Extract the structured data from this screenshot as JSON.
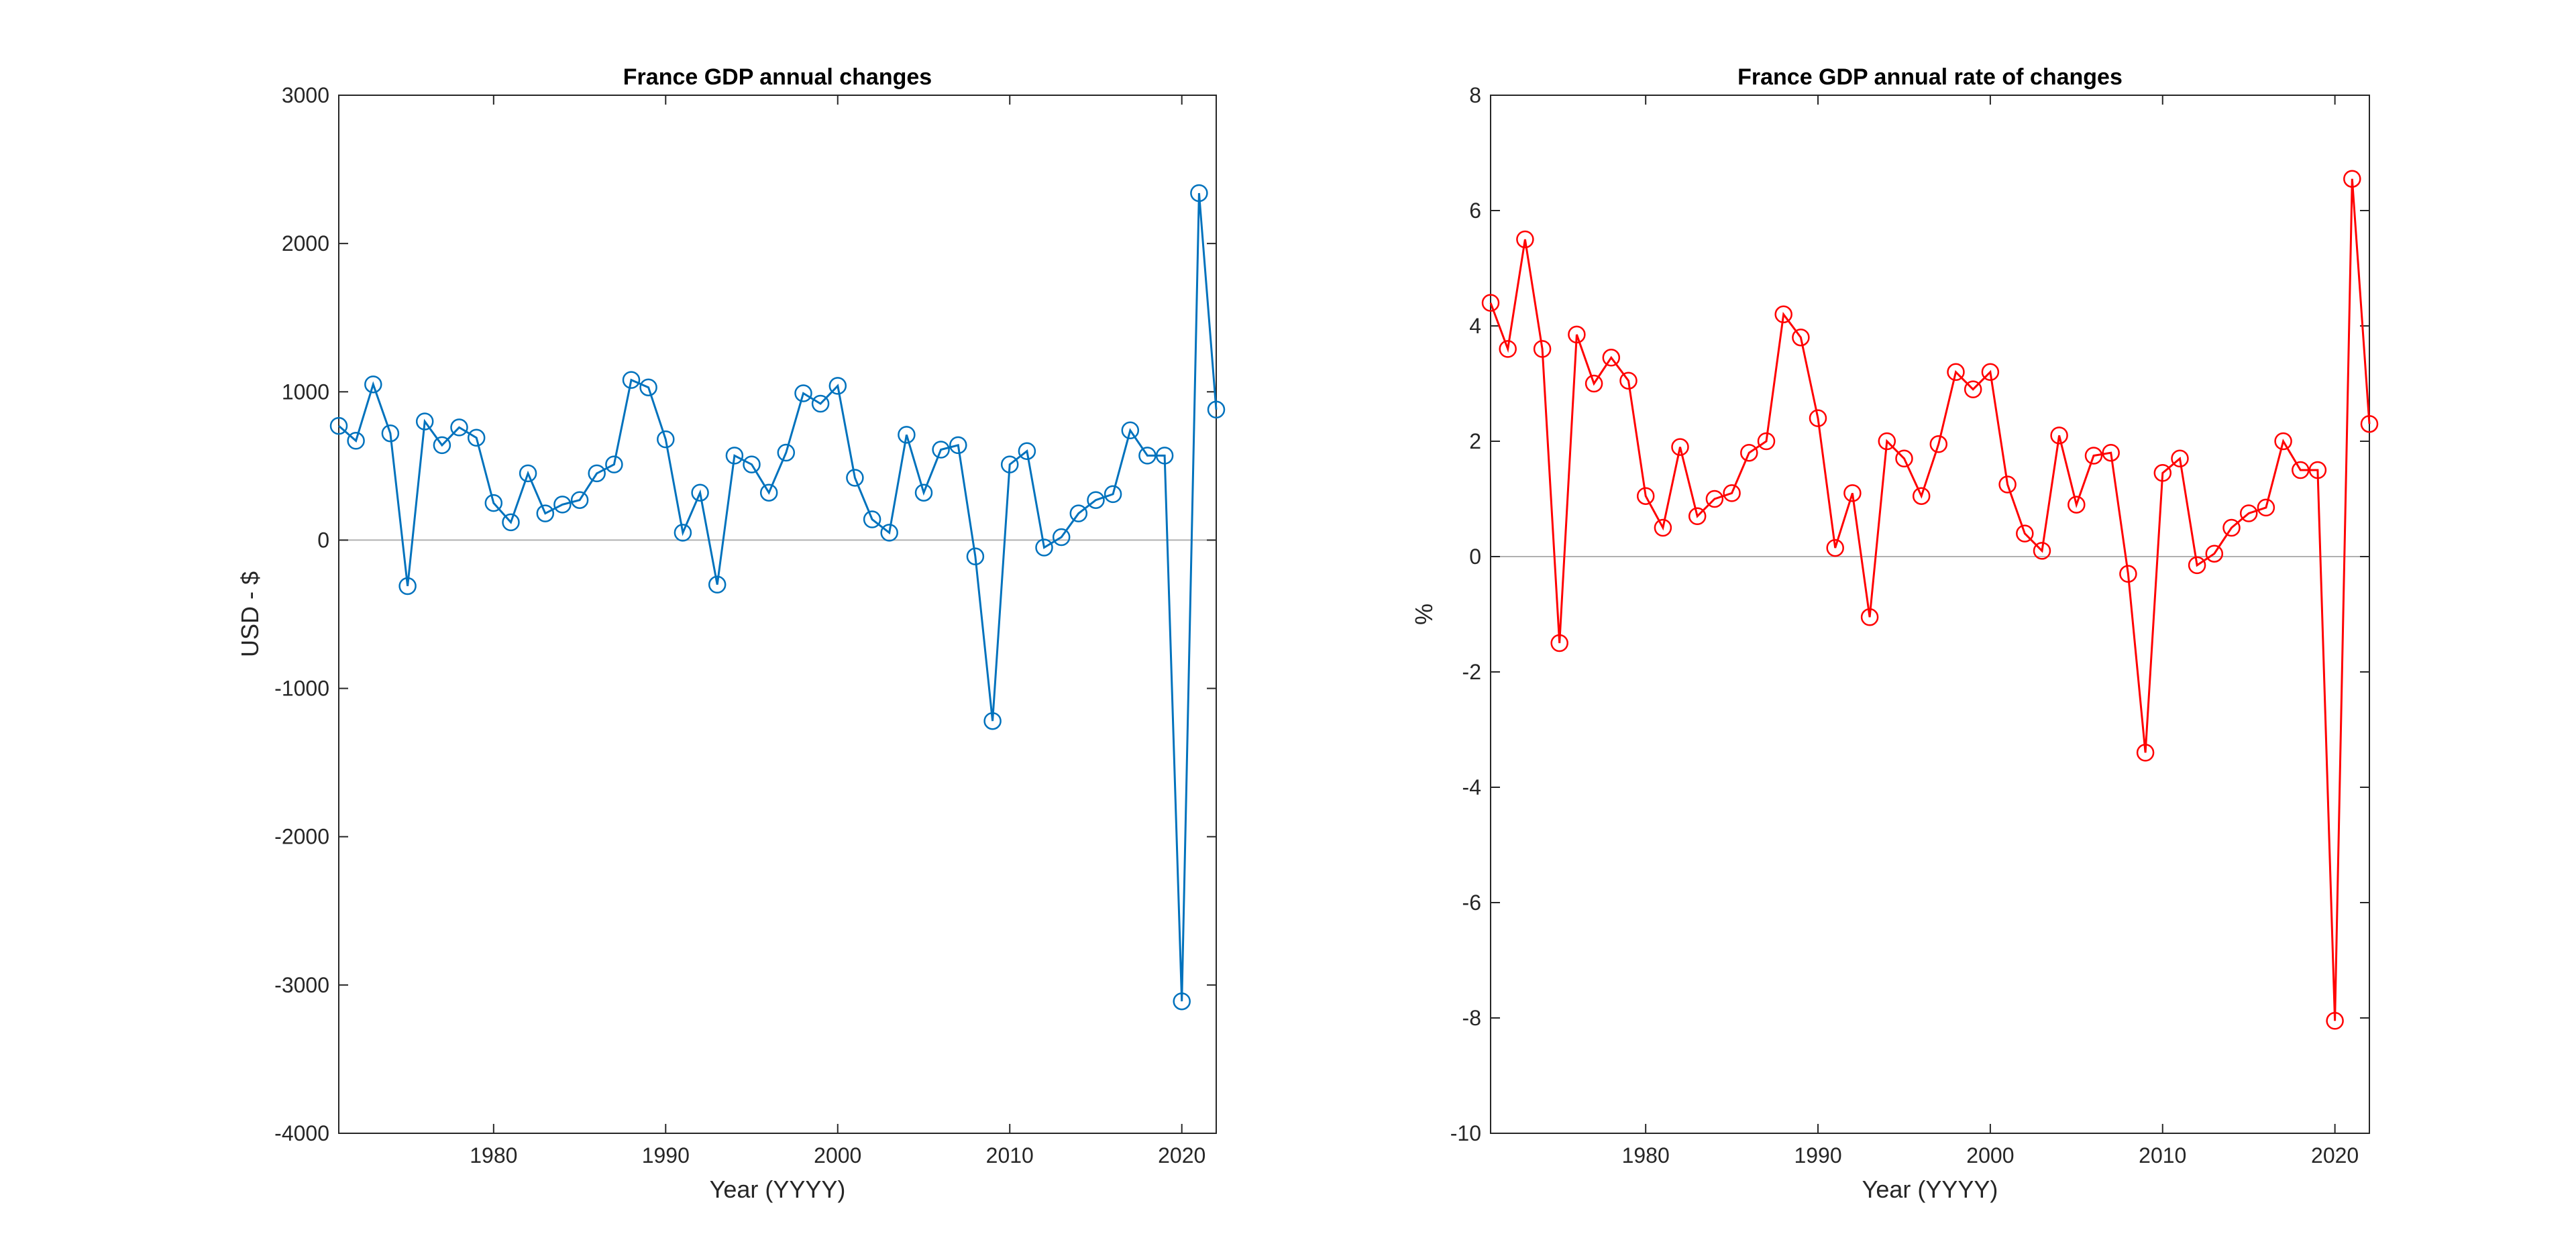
{
  "colors": {
    "left_series": "#0072BD",
    "right_series": "#FF0000",
    "axis": "#262626",
    "zero_line": "#B0B0B0",
    "background": "#FFFFFF"
  },
  "chart_data": [
    {
      "type": "line",
      "title": "France GDP annual changes",
      "xlabel": "Year (YYYY)",
      "ylabel": "USD - $",
      "xlim": [
        1971,
        2022
      ],
      "ylim": [
        -4000,
        3000
      ],
      "xticks": [
        1980,
        1990,
        2000,
        2010,
        2020
      ],
      "yticks": [
        -4000,
        -3000,
        -2000,
        -1000,
        0,
        1000,
        2000,
        3000
      ],
      "grid": false,
      "marker": "circle",
      "series": [
        {
          "x": [
            1971,
            1972,
            1973,
            1974,
            1975,
            1976,
            1977,
            1978,
            1979,
            1980,
            1981,
            1982,
            1983,
            1984,
            1985,
            1986,
            1987,
            1988,
            1989,
            1990,
            1991,
            1992,
            1993,
            1994,
            1995,
            1996,
            1997,
            1998,
            1999,
            2000,
            2001,
            2002,
            2003,
            2004,
            2005,
            2006,
            2007,
            2008,
            2009,
            2010,
            2011,
            2012,
            2013,
            2014,
            2015,
            2016,
            2017,
            2018,
            2019,
            2020,
            2021,
            2022
          ],
          "values": [
            770,
            670,
            1050,
            720,
            -310,
            800,
            640,
            760,
            690,
            250,
            120,
            450,
            180,
            240,
            270,
            450,
            510,
            1080,
            1030,
            680,
            50,
            320,
            -300,
            570,
            510,
            320,
            590,
            990,
            920,
            1040,
            420,
            140,
            50,
            710,
            320,
            610,
            640,
            -110,
            -1220,
            510,
            600,
            -50,
            20,
            180,
            270,
            310,
            740,
            570,
            570,
            -3110,
            2340,
            880
          ]
        }
      ]
    },
    {
      "type": "line",
      "title": "France GDP annual rate of changes",
      "xlabel": "Year (YYYY)",
      "ylabel": "%",
      "xlim": [
        1971,
        2022
      ],
      "ylim": [
        -10,
        8
      ],
      "xticks": [
        1980,
        1990,
        2000,
        2010,
        2020
      ],
      "yticks": [
        -10,
        -8,
        -6,
        -4,
        -2,
        0,
        2,
        4,
        6,
        8
      ],
      "grid": false,
      "marker": "circle",
      "series": [
        {
          "x": [
            1971,
            1972,
            1973,
            1974,
            1975,
            1976,
            1977,
            1978,
            1979,
            1980,
            1981,
            1982,
            1983,
            1984,
            1985,
            1986,
            1987,
            1988,
            1989,
            1990,
            1991,
            1992,
            1993,
            1994,
            1995,
            1996,
            1997,
            1998,
            1999,
            2000,
            2001,
            2002,
            2003,
            2004,
            2005,
            2006,
            2007,
            2008,
            2009,
            2010,
            2011,
            2012,
            2013,
            2014,
            2015,
            2016,
            2017,
            2018,
            2019,
            2020,
            2021,
            2022
          ],
          "values": [
            4.4,
            3.6,
            5.5,
            3.6,
            -1.5,
            3.85,
            3.0,
            3.45,
            3.05,
            1.05,
            0.5,
            1.9,
            0.7,
            1.0,
            1.1,
            1.8,
            2.0,
            4.2,
            3.8,
            2.4,
            0.15,
            1.1,
            -1.05,
            2.0,
            1.7,
            1.05,
            1.95,
            3.2,
            2.9,
            3.2,
            1.25,
            0.4,
            0.1,
            2.1,
            0.9,
            1.75,
            1.8,
            -0.3,
            -3.4,
            1.45,
            1.7,
            -0.15,
            0.05,
            0.5,
            0.75,
            0.85,
            2.0,
            1.5,
            1.5,
            -8.05,
            6.55,
            2.3
          ]
        }
      ]
    }
  ]
}
